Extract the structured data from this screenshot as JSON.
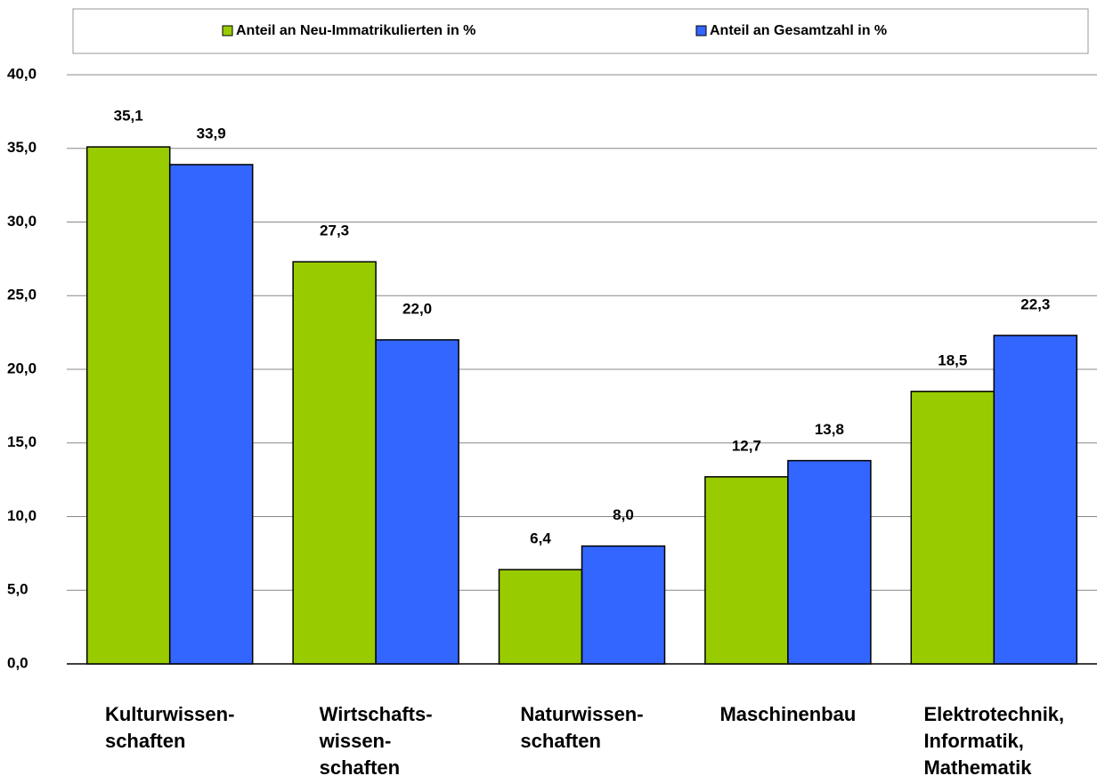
{
  "chart_data": {
    "type": "bar",
    "categories": [
      "Kulturwissen-\nschaften",
      "Wirtschafts-\nwissen-\nschaften",
      "Naturwissen-\nschaften",
      "Maschinenbau",
      "Elektrotechnik,\nInformatik,\nMathematik"
    ],
    "series": [
      {
        "name": "Anteil an Neu-Immatrikulierten in %",
        "color": "#99cc00",
        "values": [
          35.1,
          27.3,
          6.4,
          12.7,
          18.5
        ],
        "value_labels": [
          "35,1",
          "27,3",
          "6,4",
          "12,7",
          "18,5"
        ]
      },
      {
        "name": "Anteil an Gesamtzahl in %",
        "color": "#3366ff",
        "values": [
          33.9,
          22.0,
          8.0,
          13.8,
          22.3
        ],
        "value_labels": [
          "33,9",
          "22,0",
          "8,0",
          "13,8",
          "22,3"
        ]
      }
    ],
    "ylim": [
      0,
      40
    ],
    "yticks": [
      {
        "value": 0,
        "label": "0,0"
      },
      {
        "value": 5,
        "label": "5,0"
      },
      {
        "value": 10,
        "label": "10,0"
      },
      {
        "value": 15,
        "label": "15,0"
      },
      {
        "value": 20,
        "label": "20,0"
      },
      {
        "value": 25,
        "label": "25,0"
      },
      {
        "value": 30,
        "label": "30,0"
      },
      {
        "value": 35,
        "label": "35,0"
      },
      {
        "value": 40,
        "label": "40,0"
      }
    ],
    "grid": true,
    "legend": "top"
  }
}
